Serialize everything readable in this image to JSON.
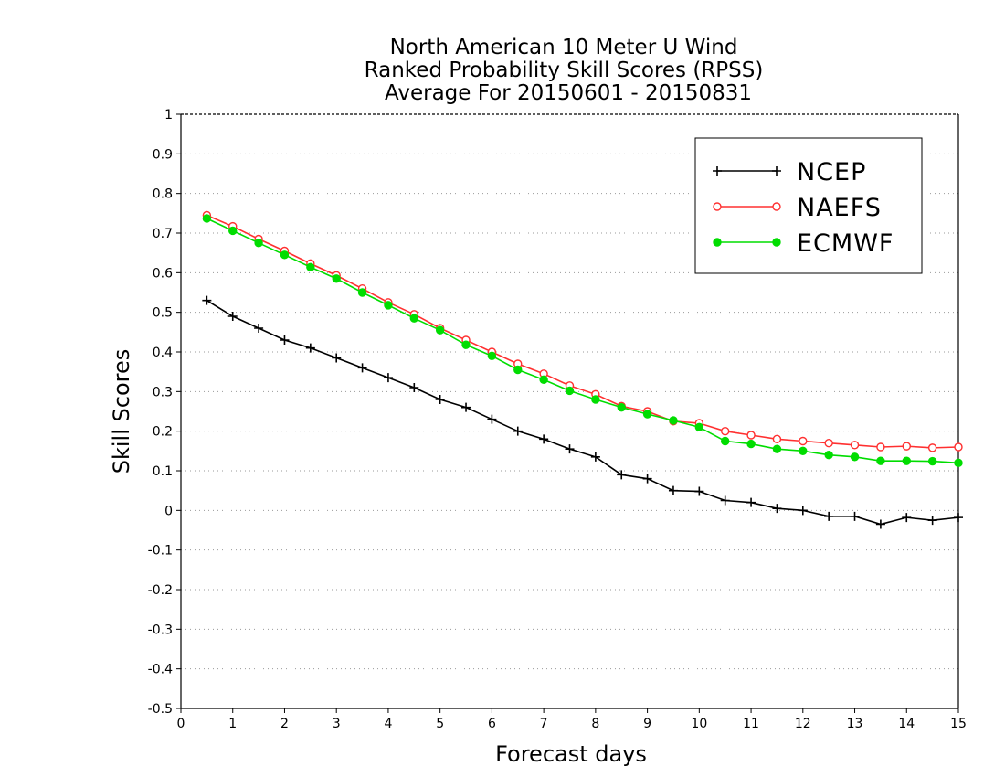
{
  "chart_data": {
    "type": "line",
    "title": [
      "North American 10 Meter U Wind",
      "Ranked Probability Skill Scores (RPSS)",
      "Average For 20150601 - 20150831"
    ],
    "xlabel": "Forecast days",
    "ylabel": "Skill Scores",
    "xlim": [
      0,
      15
    ],
    "ylim": [
      -0.5,
      1
    ],
    "xticks": [
      "0",
      "1",
      "2",
      "3",
      "4",
      "5",
      "6",
      "7",
      "8",
      "9",
      "10",
      "11",
      "12",
      "13",
      "14",
      "15"
    ],
    "yticks": [
      "-0.5",
      "-0.4",
      "-0.3",
      "-0.2",
      "-0.1",
      "0",
      "0.1",
      "0.2",
      "0.3",
      "0.4",
      "0.5",
      "0.6",
      "0.7",
      "0.8",
      "0.9",
      "1"
    ],
    "grid": "horizontal dotted",
    "legend_position": "top-right",
    "x": [
      0.5,
      1,
      1.5,
      2,
      2.5,
      3,
      3.5,
      4,
      4.5,
      5,
      5.5,
      6,
      6.5,
      7,
      7.5,
      8,
      8.5,
      9,
      9.5,
      10,
      10.5,
      11,
      11.5,
      12,
      12.5,
      13,
      13.5,
      14,
      14.5,
      15
    ],
    "series": [
      {
        "name": "NCEP",
        "color": "#000000",
        "marker": "plus",
        "values": [
          0.53,
          0.49,
          0.46,
          0.43,
          0.41,
          0.385,
          0.36,
          0.335,
          0.31,
          0.28,
          0.26,
          0.23,
          0.2,
          0.18,
          0.155,
          0.135,
          0.09,
          0.08,
          0.05,
          0.048,
          0.025,
          0.02,
          0.005,
          0.0,
          -0.015,
          -0.015,
          -0.035,
          -0.018,
          -0.025,
          -0.018
        ]
      },
      {
        "name": "NAEFS",
        "color": "#ff3030",
        "marker": "open-circle",
        "values": [
          0.745,
          0.717,
          0.685,
          0.655,
          0.623,
          0.593,
          0.56,
          0.525,
          0.495,
          0.46,
          0.43,
          0.4,
          0.37,
          0.345,
          0.315,
          0.293,
          0.263,
          0.25,
          0.225,
          0.22,
          0.2,
          0.19,
          0.18,
          0.175,
          0.17,
          0.165,
          0.16,
          0.162,
          0.158,
          0.16
        ]
      },
      {
        "name": "ECMWF",
        "color": "#00dd00",
        "marker": "filled-circle",
        "values": [
          0.737,
          0.706,
          0.675,
          0.645,
          0.614,
          0.585,
          0.55,
          0.518,
          0.485,
          0.455,
          0.418,
          0.39,
          0.355,
          0.33,
          0.302,
          0.28,
          0.26,
          0.243,
          0.227,
          0.21,
          0.175,
          0.168,
          0.155,
          0.15,
          0.14,
          0.135,
          0.125,
          0.125,
          0.124,
          0.12
        ]
      }
    ]
  }
}
